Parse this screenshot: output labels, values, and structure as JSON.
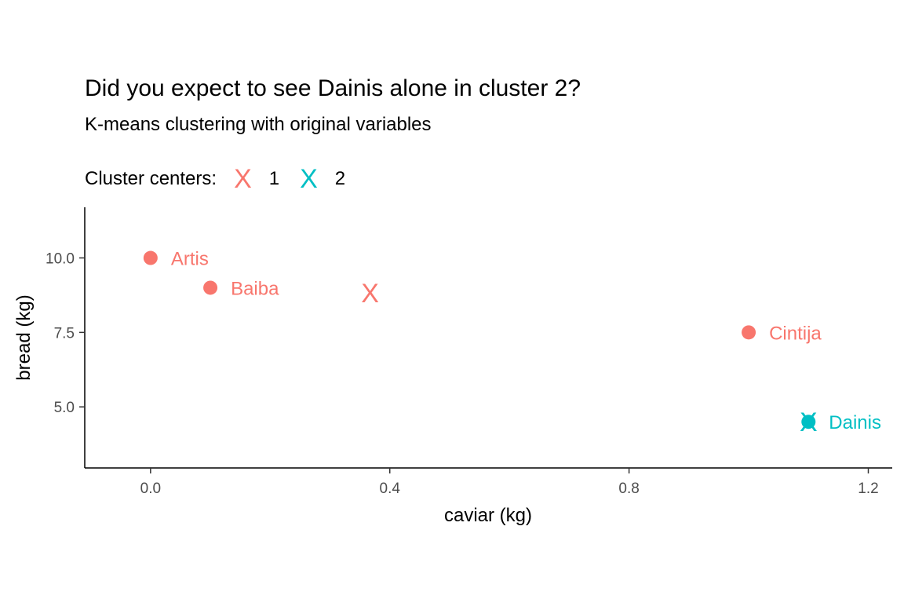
{
  "chart_data": {
    "type": "scatter",
    "title": "Did you expect to see Dainis alone in cluster 2?",
    "subtitle": "K-means clustering with original variables",
    "xlabel": "caviar (kg)",
    "ylabel": "bread (kg)",
    "xlim": [
      -0.11,
      1.24
    ],
    "ylim": [
      2.95,
      11.7
    ],
    "xticks": [
      0.0,
      0.4,
      0.8,
      1.2
    ],
    "xtick_labels": [
      "0.0",
      "0.4",
      "0.8",
      "1.2"
    ],
    "yticks": [
      5.0,
      7.5,
      10.0
    ],
    "ytick_labels": [
      "5.0",
      "7.5",
      "10.0"
    ],
    "grid": false,
    "legend": {
      "title": "Cluster centers:",
      "placement": "top-left",
      "entries": [
        {
          "key": "X",
          "label": "1",
          "color": "#F8766D"
        },
        {
          "key": "X",
          "label": "2",
          "color": "#00BFC4"
        }
      ]
    },
    "points": [
      {
        "name": "Artis",
        "x": 0.0,
        "y": 10.0,
        "cluster": 1
      },
      {
        "name": "Baiba",
        "x": 0.1,
        "y": 9.0,
        "cluster": 1
      },
      {
        "name": "Cintija",
        "x": 1.0,
        "y": 7.5,
        "cluster": 1
      },
      {
        "name": "Dainis",
        "x": 1.1,
        "y": 4.5,
        "cluster": 2
      }
    ],
    "centers": [
      {
        "cluster": 1,
        "x": 0.367,
        "y": 8.83,
        "marker": "X"
      },
      {
        "cluster": 2,
        "x": 1.1,
        "y": 4.5,
        "marker": "X"
      }
    ],
    "cluster_colors": {
      "1": "#F8766D",
      "2": "#00BFC4"
    }
  }
}
